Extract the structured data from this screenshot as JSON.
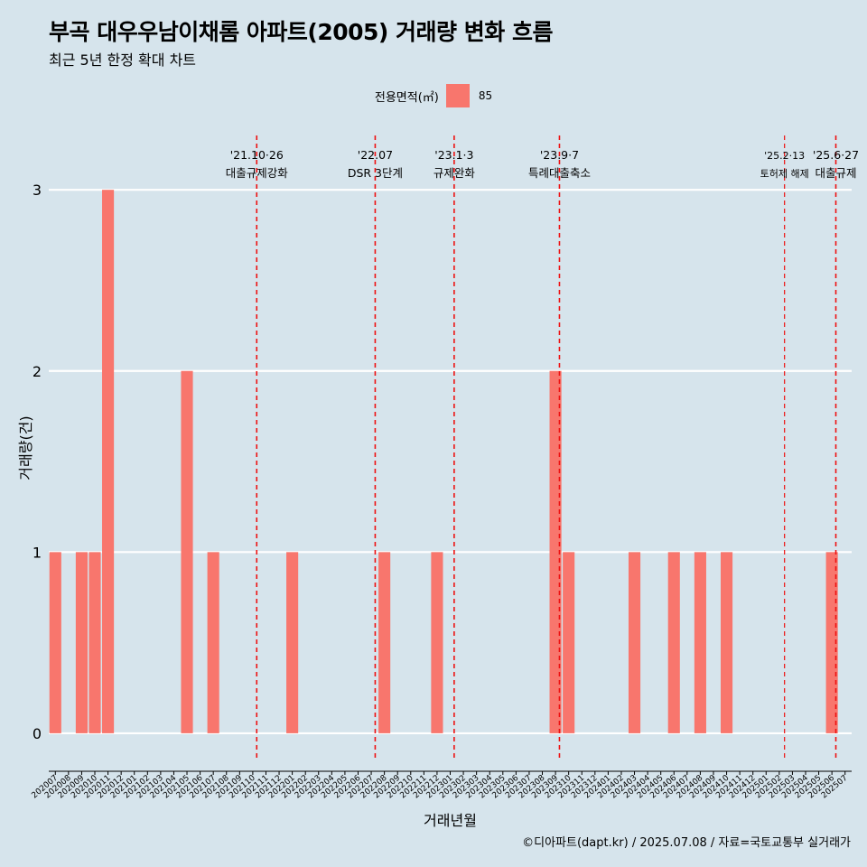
{
  "title": "부곡 대우우남이채롬 아파트(2005) 거래량 변화 흐름",
  "subtitle": "최근 5년 한정 확대 차트",
  "caption": "©디아파트(dapt.kr) / 2025.07.08 / 자료=국토교통부 실거래가",
  "legend": {
    "title": "전용면적(㎡)",
    "label": "85",
    "color": "#f8766d"
  },
  "chart_data": {
    "type": "bar",
    "xlabel": "거래년월",
    "ylabel": "거래량(건)",
    "ylim": [
      -0.15,
      3.3
    ],
    "yticks": [
      0,
      1,
      2,
      3
    ],
    "grid": true,
    "legend_position": "top",
    "bar_color": "#f8766d",
    "series": [
      {
        "name": "85",
        "color": "#f8766d"
      }
    ],
    "categories": [
      "202007",
      "202008",
      "202009",
      "202010",
      "202011",
      "202012",
      "202101",
      "202102",
      "202103",
      "202104",
      "202105",
      "202106",
      "202107",
      "202108",
      "202109",
      "202110",
      "202111",
      "202112",
      "202201",
      "202202",
      "202203",
      "202204",
      "202205",
      "202206",
      "202207",
      "202208",
      "202209",
      "202210",
      "202211",
      "202212",
      "202301",
      "202302",
      "202303",
      "202304",
      "202305",
      "202306",
      "202307",
      "202308",
      "202309",
      "202310",
      "202311",
      "202312",
      "202401",
      "202402",
      "202403",
      "202404",
      "202405",
      "202406",
      "202407",
      "202408",
      "202409",
      "202410",
      "202411",
      "202412",
      "202501",
      "202502",
      "202503",
      "202504",
      "202505",
      "202506",
      "202507"
    ],
    "values": [
      1,
      0,
      1,
      1,
      3,
      0,
      0,
      0,
      0,
      0,
      2,
      0,
      1,
      0,
      0,
      0,
      0,
      0,
      1,
      0,
      0,
      0,
      0,
      0,
      0,
      1,
      0,
      0,
      0,
      1,
      0,
      0,
      0,
      0,
      0,
      0,
      0,
      0,
      2,
      1,
      0,
      0,
      0,
      0,
      1,
      0,
      0,
      1,
      0,
      1,
      0,
      1,
      0,
      0,
      0,
      0,
      0,
      0,
      0,
      1,
      0
    ],
    "annotations": [
      {
        "x": 15.3,
        "date": "'21.10·26",
        "text": "대출규제강화",
        "small": false
      },
      {
        "x": 24.3,
        "date": "'22.07",
        "text": "DSR 3단계",
        "small": false
      },
      {
        "x": 30.3,
        "date": "'23.1·3",
        "text": "규제완화",
        "small": false
      },
      {
        "x": 38.3,
        "date": "'23.9·7",
        "text": "특례대출축소",
        "small": false
      },
      {
        "x": 55.4,
        "date": "'25.2·13",
        "text": "토허제 해제",
        "small": true
      },
      {
        "x": 59.3,
        "date": "'25.6·27",
        "text": "대출규제",
        "small": false
      }
    ]
  }
}
